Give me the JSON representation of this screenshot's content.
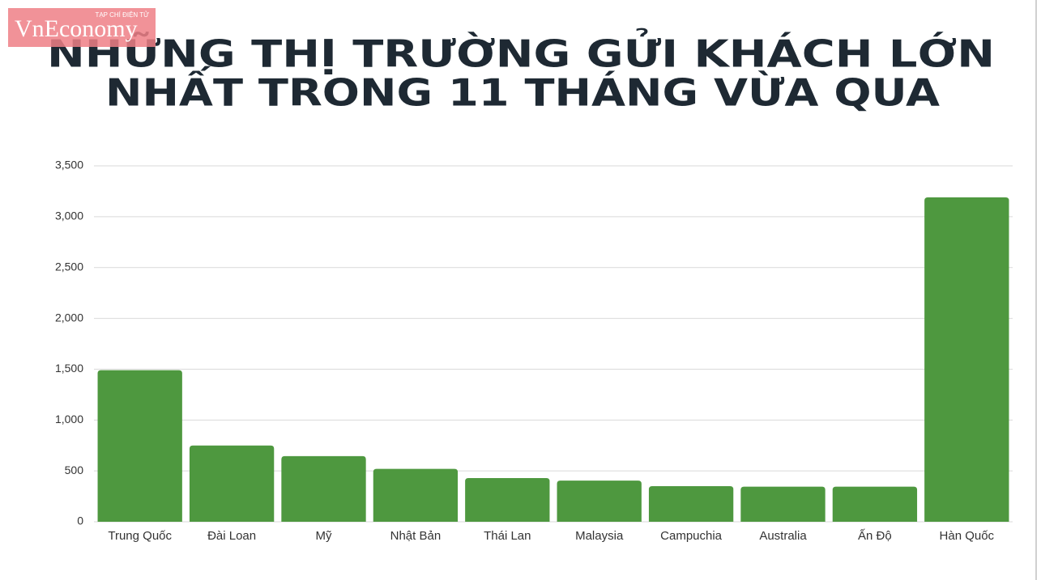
{
  "logo": {
    "name": "VnEconomy",
    "tagline": "TẠP CHÍ ĐIỆN TỬ"
  },
  "chart_data": {
    "type": "bar",
    "title": [
      "NHỮNG THỊ TRƯỜNG GỬI KHÁCH LỚN",
      "NHẤT TRONG 11 THÁNG VỪA QUA"
    ],
    "categories": [
      "Trung Quốc",
      "Đài Loan",
      "Mỹ",
      "Nhật Bản",
      "Thái Lan",
      "Malaysia",
      "Campuchia",
      "Australia",
      "Ấn Độ",
      "Hàn Quốc"
    ],
    "values": [
      1490,
      750,
      645,
      520,
      430,
      405,
      350,
      345,
      345,
      3190
    ],
    "color": "#4e983f",
    "ylim": [
      0,
      3500
    ],
    "yticks": [
      0,
      500,
      {
        "value": 1000,
        "label": "1,000"
      },
      {
        "value": 1500,
        "label": "1,500"
      },
      {
        "value": 2000,
        "label": "2,000"
      },
      {
        "value": 2500,
        "label": "2,500"
      },
      {
        "value": 3000,
        "label": "3,000"
      },
      {
        "value": 3500,
        "label": "3,500"
      }
    ],
    "grid": true
  }
}
